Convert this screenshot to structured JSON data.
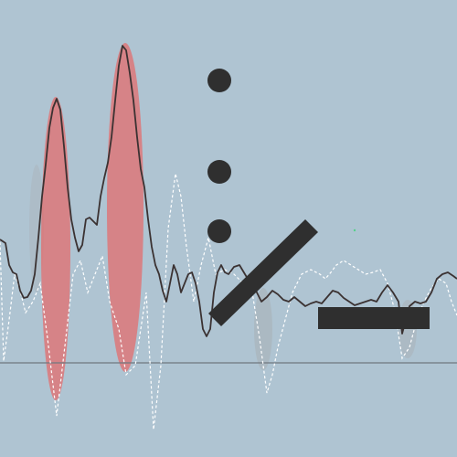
{
  "colors": {
    "background": "#afc4d2",
    "baseline": "#6f7880",
    "waveform_main": "#3b3232",
    "waveform_ghost": "#ffffff",
    "red_blob": "#e46a6a",
    "shadow_blob": "#a8b0b4",
    "obstacle": "#2f2f2f",
    "green_dot": "#55d08a"
  },
  "scene": {
    "waveforms": [
      {
        "name": "main-waveform",
        "style": "solid"
      },
      {
        "name": "ghost-waveform",
        "style": "dashed"
      }
    ],
    "obstacles": [
      {
        "name": "dot-obstacle",
        "shape": "circle"
      },
      {
        "name": "dot-obstacle",
        "shape": "circle"
      },
      {
        "name": "dot-obstacle",
        "shape": "circle"
      },
      {
        "name": "diagonal-bar-obstacle",
        "shape": "bar"
      },
      {
        "name": "horizontal-bar-obstacle",
        "shape": "bar"
      }
    ],
    "hazards": [
      {
        "name": "red-spike-hazard-1",
        "shape": "lens"
      },
      {
        "name": "red-spike-hazard-2",
        "shape": "lens"
      }
    ]
  }
}
